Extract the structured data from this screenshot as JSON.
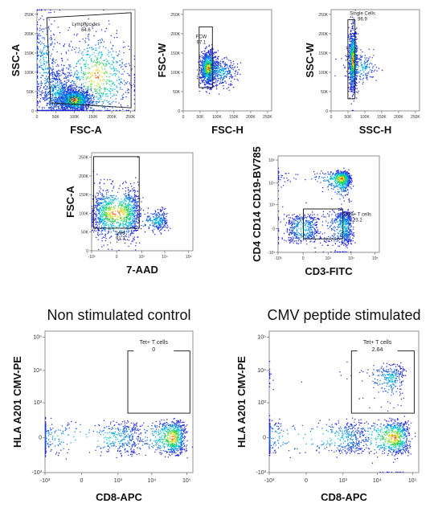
{
  "chart_data": [
    {
      "type": "scatter",
      "xlabel": "FSC-A",
      "ylabel": "SSC-A",
      "xticks": [
        "0",
        "50K",
        "100K",
        "150K",
        "200K",
        "250K"
      ],
      "yticks": [
        "0",
        "50K",
        "100K",
        "150K",
        "200K",
        "250K"
      ],
      "xlim": [
        0,
        262144
      ],
      "ylim": [
        0,
        262144
      ],
      "gate": {
        "label": "Lymphocytes",
        "value": "64.6"
      },
      "populations": [
        {
          "x": 100000,
          "y": 28000,
          "sx": 22000,
          "sy": 14000,
          "n": 1400
        },
        {
          "x": 55000,
          "y": 45000,
          "sx": 25000,
          "sy": 35000,
          "n": 600
        },
        {
          "x": 160000,
          "y": 90000,
          "sx": 50000,
          "sy": 60000,
          "n": 700
        },
        {
          "x": 20000,
          "y": 120000,
          "sx": 20000,
          "sy": 70000,
          "n": 300
        }
      ]
    },
    {
      "type": "scatter",
      "xlabel": "FSC-H",
      "ylabel": "FSC-W",
      "xticks": [
        "0",
        "50K",
        "100K",
        "150K",
        "200K",
        "250K"
      ],
      "yticks": [
        "0",
        "50K",
        "100K",
        "150K",
        "200K",
        "250K"
      ],
      "xlim": [
        0,
        262144
      ],
      "ylim": [
        0,
        262144
      ],
      "gate": {
        "label": "FCW",
        "value": "97.1"
      },
      "populations": [
        {
          "x": 75000,
          "y": 110000,
          "sx": 12000,
          "sy": 22000,
          "n": 900
        },
        {
          "x": 110000,
          "y": 100000,
          "sx": 25000,
          "sy": 18000,
          "n": 300
        }
      ]
    },
    {
      "type": "scatter",
      "xlabel": "SSC-H",
      "ylabel": "SSC-W",
      "xticks": [
        "0",
        "50K",
        "100K",
        "150K",
        "200K",
        "250K"
      ],
      "yticks": [
        "0",
        "50K",
        "100K",
        "150K",
        "200K",
        "250K"
      ],
      "xlim": [
        0,
        262144
      ],
      "ylim": [
        0,
        262144
      ],
      "gate": {
        "label": "Single Cells",
        "value": "96.9"
      },
      "populations": [
        {
          "x": 65000,
          "y": 130000,
          "sx": 6000,
          "sy": 40000,
          "n": 900
        },
        {
          "x": 90000,
          "y": 110000,
          "sx": 25000,
          "sy": 20000,
          "n": 200
        }
      ]
    },
    {
      "type": "scatter",
      "xlabel": "7-AAD",
      "ylabel": "FSC-A",
      "xticks": [
        "-10³",
        "0",
        "10³",
        "10⁴",
        "10⁵"
      ],
      "yticks": [
        "0",
        "50K",
        "100K",
        "150K",
        "200K",
        "250K"
      ],
      "ylim": [
        0,
        262144
      ],
      "gate": {
        "label": "Live",
        "value": "91.3"
      },
      "populations": [
        {
          "x": 0,
          "y": 100000,
          "sx": 350,
          "sy": 35000,
          "n": 1100
        },
        {
          "x": 5000,
          "y": 80000,
          "sx": 4000,
          "sy": 15000,
          "n": 300
        }
      ]
    },
    {
      "type": "scatter",
      "xlabel": "CD3-FITC",
      "ylabel": "CD4 CD14 CD19-BV785",
      "xticks": [
        "-10³",
        "0",
        "10³",
        "10⁴",
        "10⁵"
      ],
      "yticks": [
        "-10³",
        "0",
        "10³",
        "10⁴",
        "10⁵"
      ],
      "gate": {
        "label": "CD8+ T cells",
        "value": "23.2"
      },
      "populations": [
        {
          "x": 0,
          "y": 0,
          "sx": 150,
          "sy": 150,
          "n": 400
        },
        {
          "x": 4000,
          "y": 15000,
          "sx": 2500,
          "sy": 8000,
          "n": 700
        },
        {
          "x": 5000,
          "y": 30,
          "sx": 3000,
          "sy": 200,
          "n": 600
        }
      ]
    },
    {
      "type": "scatter",
      "title": "Non stimulated control",
      "xlabel": "CD8-APC",
      "ylabel": "HLA A201 CMV-PE",
      "xticks": [
        "-10³",
        "0",
        "10³",
        "10⁴",
        "10⁵"
      ],
      "yticks": [
        "-10³",
        "0",
        "10³",
        "10⁴",
        "10⁵"
      ],
      "gate": {
        "label": "Tet+ T cells",
        "value": "0"
      },
      "populations": [
        {
          "x": 40000,
          "y": 0,
          "sx": 25000,
          "sy": 100,
          "n": 700
        },
        {
          "x": 500,
          "y": 0,
          "sx": 2000,
          "sy": 100,
          "n": 500
        }
      ]
    },
    {
      "type": "scatter",
      "title": "CMV peptide stimulated",
      "xlabel": "CD8-APC",
      "ylabel": "HLA A201 CMV-PE",
      "xticks": [
        "-10³",
        "0",
        "10³",
        "10⁴",
        "10⁵"
      ],
      "yticks": [
        "-10³",
        "0",
        "10³",
        "10⁴",
        "10⁵"
      ],
      "gate": {
        "label": "Tet+ T cells",
        "value": "2.64"
      },
      "populations": [
        {
          "x": 30000,
          "y": 0,
          "sx": 25000,
          "sy": 100,
          "n": 700
        },
        {
          "x": 500,
          "y": 0,
          "sx": 2000,
          "sy": 100,
          "n": 500
        },
        {
          "x": 25000,
          "y": 6000,
          "sx": 15000,
          "sy": 4000,
          "n": 300
        }
      ]
    }
  ]
}
